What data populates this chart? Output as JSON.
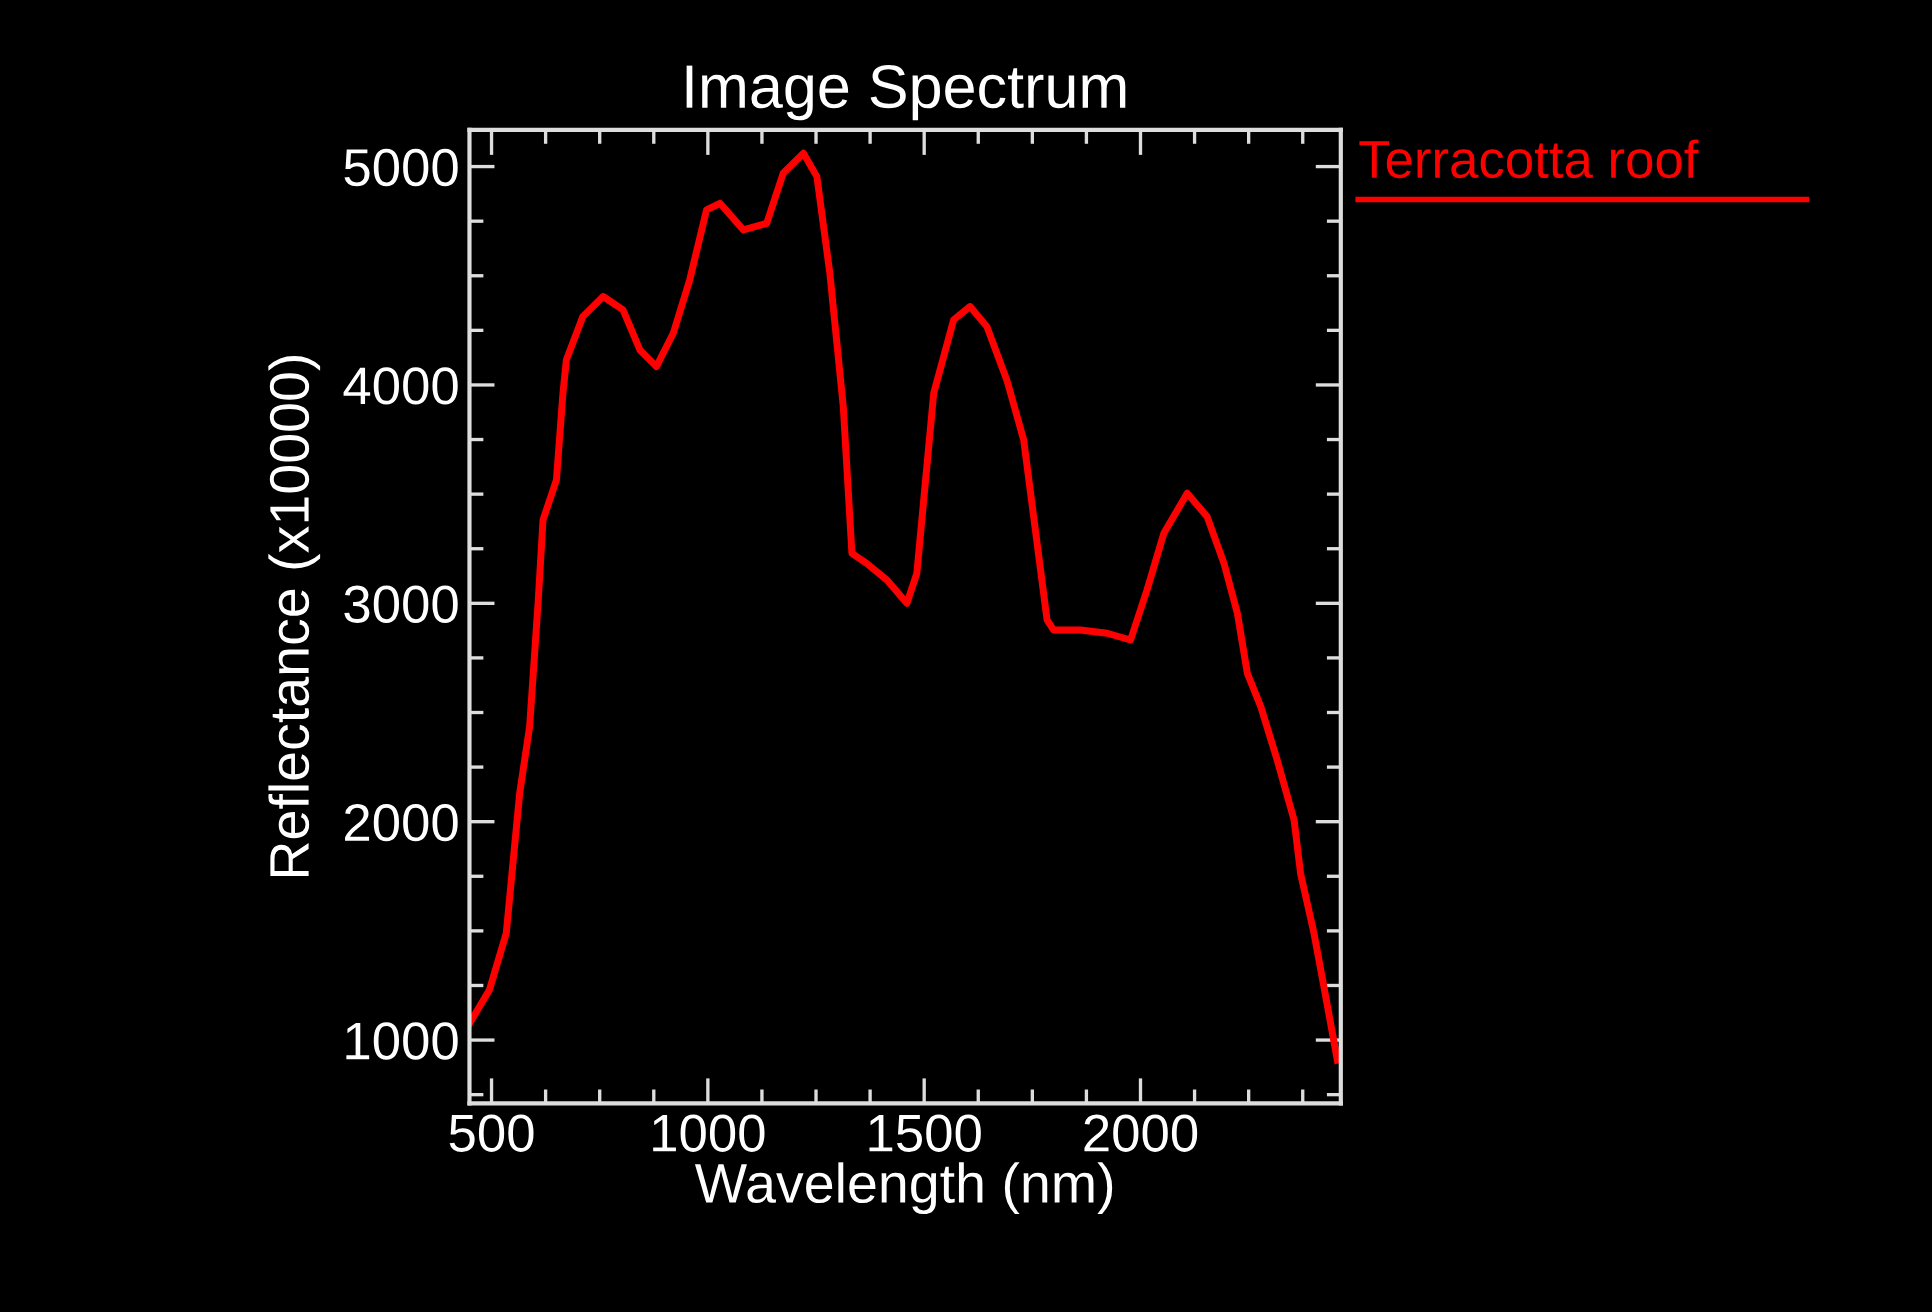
{
  "chart_data": {
    "type": "line",
    "title": "Image Spectrum",
    "xlabel": "Wavelength (nm)",
    "ylabel": "Reflectance (x10000)",
    "xlim": [
      449,
      2463
    ],
    "ylim": [
      710,
      5168
    ],
    "xticks": [
      500,
      1000,
      1500,
      2000
    ],
    "yticks": [
      1000,
      2000,
      3000,
      4000,
      5000
    ],
    "grid": false,
    "legend": "top right",
    "marker": "none",
    "line_style": "solid",
    "series": [
      {
        "name": "Terracotta roof",
        "color": "#ff0000",
        "x": [
          449,
          495,
          534,
          542,
          565,
          588,
          608,
          619,
          650,
          665,
          673,
          711,
          758,
          804,
          843,
          881,
          920,
          958,
          997,
          1028,
          1082,
          1136,
          1174,
          1221,
          1252,
          1282,
          1313,
          1333,
          1367,
          1414,
          1460,
          1483,
          1522,
          1568,
          1606,
          1645,
          1691,
          1730,
          1784,
          1799,
          1861,
          1923,
          1977,
          2015,
          2054,
          2108,
          2154,
          2193,
          2224,
          2247,
          2278,
          2316,
          2355,
          2370,
          2401,
          2424,
          2455
        ],
        "values": [
          1076,
          1229,
          1489,
          1656,
          2130,
          2435,
          3015,
          3382,
          3565,
          3962,
          4115,
          4313,
          4405,
          4344,
          4160,
          4084,
          4237,
          4481,
          4802,
          4832,
          4710,
          4740,
          4969,
          5061,
          4954,
          4511,
          3901,
          3229,
          3183,
          3107,
          3000,
          3137,
          3962,
          4298,
          4359,
          4267,
          4023,
          3748,
          2924,
          2878,
          2878,
          2863,
          2832,
          3061,
          3321,
          3504,
          3397,
          3183,
          2954,
          2679,
          2527,
          2282,
          2008,
          1763,
          1489,
          1244,
          908
        ]
      }
    ]
  }
}
